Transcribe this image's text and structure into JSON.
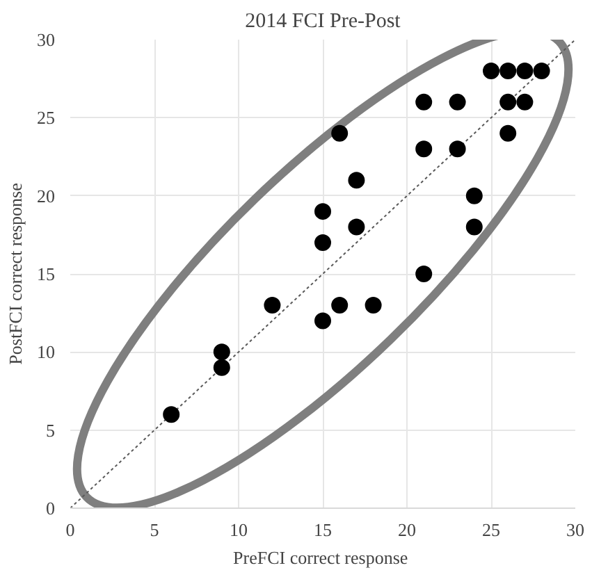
{
  "chart_data": {
    "type": "scatter",
    "title": "2014 FCI Pre-Post",
    "xlabel": "PreFCI  correct response",
    "ylabel": "PostFCI correct response",
    "xlim": [
      0,
      30
    ],
    "ylim": [
      0,
      30
    ],
    "xticks": [
      0,
      5,
      10,
      15,
      20,
      25,
      30
    ],
    "yticks": [
      0,
      5,
      10,
      15,
      20,
      25,
      30
    ],
    "grid": true,
    "series": [
      {
        "marker": "circle",
        "color": "#000000",
        "x": [
          6,
          9,
          9,
          12,
          15,
          15,
          15,
          16,
          16,
          17,
          17,
          18,
          21,
          21,
          21,
          23,
          23,
          24,
          24,
          25,
          26,
          27,
          28,
          26,
          27,
          26
        ],
        "values": [
          6,
          10,
          9,
          13,
          19,
          17,
          12,
          24,
          13,
          21,
          18,
          13,
          26,
          23,
          15,
          26,
          23,
          20,
          18,
          28,
          28,
          28,
          28,
          26,
          26,
          24
        ]
      },
      {
        "type": "line",
        "marker": "none",
        "color": "#595959",
        "line_style": "dotted",
        "x": [
          0,
          30
        ],
        "values": [
          0,
          30
        ]
      }
    ]
  }
}
